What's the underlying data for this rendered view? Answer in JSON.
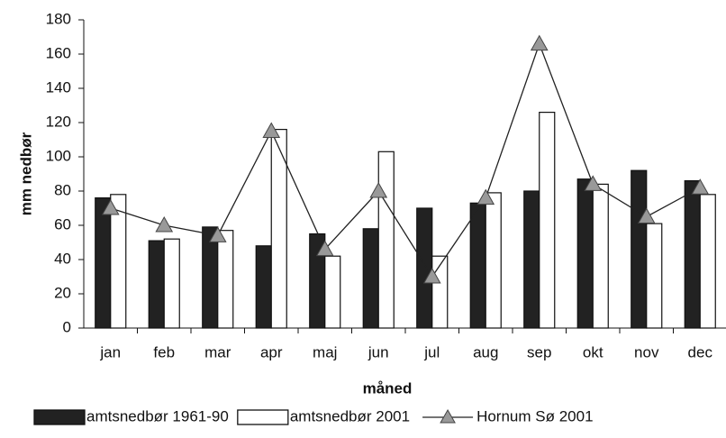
{
  "chart_data": {
    "type": "bar",
    "xlabel": "måned",
    "ylabel": "mm nedbør",
    "categories": [
      "jan",
      "feb",
      "mar",
      "apr",
      "maj",
      "jun",
      "jul",
      "aug",
      "sep",
      "okt",
      "nov",
      "dec"
    ],
    "series": [
      {
        "name": "amtsnedbør 1961-90",
        "color": "#222222",
        "type": "bar",
        "values": [
          76,
          51,
          59,
          48,
          55,
          58,
          70,
          73,
          80,
          87,
          92,
          86
        ]
      },
      {
        "name": "amtsnedbør 2001",
        "color": "#ffffff",
        "type": "bar",
        "values": [
          78,
          52,
          57,
          116,
          42,
          103,
          42,
          79,
          126,
          84,
          61,
          78
        ]
      },
      {
        "name": "Hornum Sø 2001",
        "color": "#999999",
        "type": "line",
        "values": [
          70,
          60,
          54,
          115,
          46,
          80,
          30,
          76,
          166,
          84,
          65,
          82
        ]
      }
    ],
    "ylim": [
      0,
      180
    ],
    "yticks": [
      0,
      20,
      40,
      60,
      80,
      100,
      120,
      140,
      160,
      180
    ],
    "grid": false,
    "legend": "bottom"
  }
}
